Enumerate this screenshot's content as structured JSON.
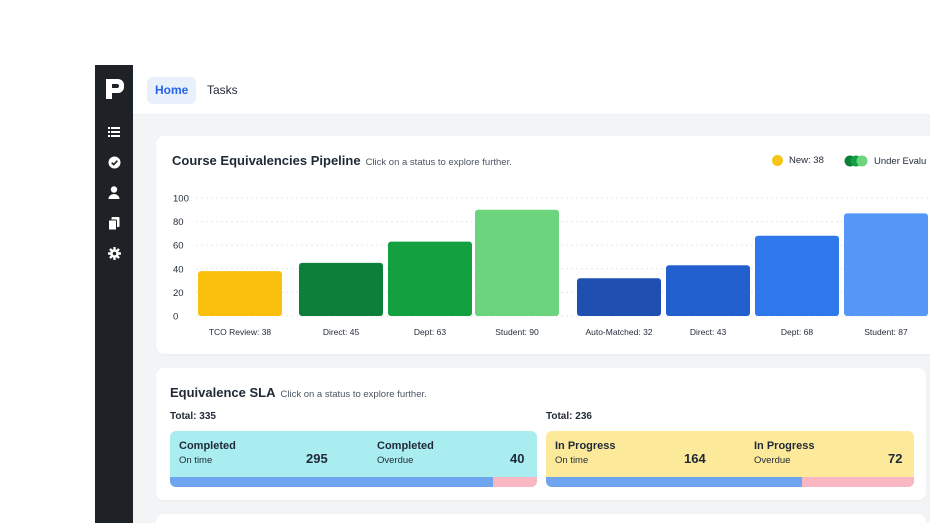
{
  "tabs": [
    {
      "label": "Home"
    },
    {
      "label": "Tasks"
    }
  ],
  "sidebar": {
    "icons": [
      "list-icon",
      "check-circle-icon",
      "user-icon",
      "documents-icon",
      "gear-icon"
    ]
  },
  "pipeline": {
    "title": "Course Equivalencies Pipeline",
    "subtitle": "Click on a status to explore further.",
    "legend": [
      {
        "label": "New: 38",
        "color": "#f5c518"
      },
      {
        "label": "Under Evalu",
        "color": "#16a34a"
      }
    ]
  },
  "chart_data": {
    "type": "bar",
    "title": "Course Equivalencies Pipeline",
    "ylim": [
      0,
      100
    ],
    "yticks": [
      0,
      20,
      40,
      60,
      80,
      100
    ],
    "grid": true,
    "categories": [
      "TCO Review: 38",
      "Direct: 45",
      "Dept: 63",
      "Student: 90",
      "Auto-Matched: 32",
      "Direct: 43",
      "Dept: 68",
      "Student: 87"
    ],
    "values": [
      38,
      45,
      63,
      90,
      32,
      43,
      68,
      87
    ],
    "colors": [
      "#fbbf0e",
      "#0d7f3a",
      "#12a040",
      "#6dd47e",
      "#1f4fb0",
      "#2360cf",
      "#2f78ec",
      "#5597f7"
    ]
  },
  "sla": {
    "title": "Equivalence SLA",
    "subtitle": "Click on a status to explore further.",
    "groups": [
      {
        "total": "Total: 335",
        "bg": "#a9edf0",
        "items": [
          {
            "label": "Completed",
            "sub": "On time",
            "value": "295"
          },
          {
            "label": "Completed",
            "sub": "Overdue",
            "value": "40"
          }
        ],
        "split": 0.88
      },
      {
        "total": "Total: 236",
        "bg": "#fde99a",
        "items": [
          {
            "label": "In Progress",
            "sub": "On time",
            "value": "164"
          },
          {
            "label": "In Progress",
            "sub": "Overdue",
            "value": "72"
          }
        ],
        "split": 0.695
      }
    ]
  }
}
